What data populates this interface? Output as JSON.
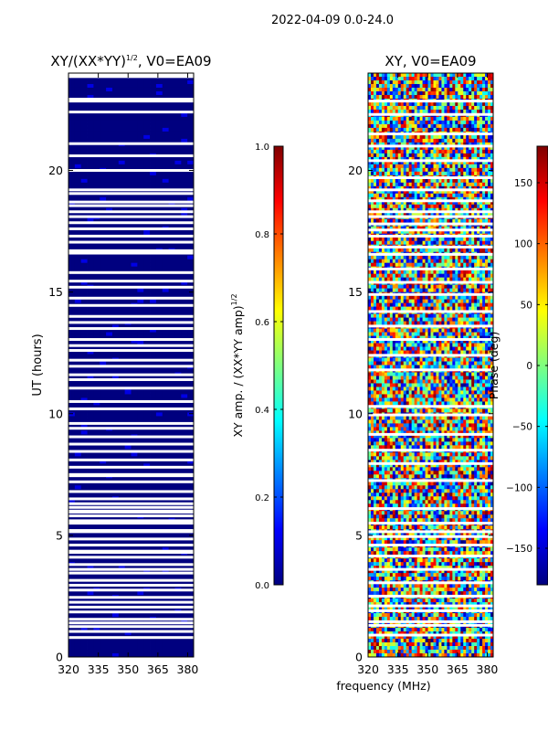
{
  "suptitle": "2022-04-09 0.0-24.0",
  "xlabel_shared": "frequency (MHz)",
  "colormap": [
    "#00007f",
    "#0000ff",
    "#007fff",
    "#00ffff",
    "#7fff7f",
    "#ffff00",
    "#ff7f00",
    "#ff0000",
    "#7f0000"
  ],
  "flag_color": "#ffffff",
  "chart_data": [
    {
      "type": "heatmap",
      "title_base": "XY/(XX*YY)",
      "title_sup": "1/2",
      "title_tail": ", V0=EA09",
      "xlabel": "",
      "ylabel": "UT (hours)",
      "xlim": [
        320,
        383
      ],
      "ylim": [
        0,
        24
      ],
      "xticks": [
        320,
        335,
        350,
        365,
        380
      ],
      "xtick_labels": [
        "320",
        "335",
        "350",
        "365",
        "380"
      ],
      "yticks": [
        0,
        5,
        10,
        15,
        20
      ],
      "ytick_labels": [
        "0",
        "5",
        "10",
        "15",
        "20"
      ],
      "value_pattern": "mostly 0.0 (dark blue) with sparse small amplitudes; many fully flagged (white) time rows",
      "colorbar": {
        "label_base": "XY amp. / (XX*YY amp)",
        "label_sup": "1/2",
        "vmin": 0.0,
        "vmax": 1.0,
        "ticks": [
          0.0,
          0.2,
          0.4,
          0.6,
          0.8,
          1.0
        ],
        "tick_labels": [
          "0.0",
          "0.2",
          "0.4",
          "0.6",
          "0.8",
          "1.0"
        ]
      },
      "flagged_hours": [
        22.85,
        22.93,
        22.4,
        21.1,
        20.6,
        20.0,
        19.2,
        19.05,
        18.7,
        18.55,
        18.3,
        18.1,
        17.85,
        17.6,
        17.3,
        17.05,
        16.7,
        16.6,
        15.8,
        15.45,
        15.2,
        14.75,
        14.45,
        14.0,
        13.75,
        13.5,
        13.05,
        12.8,
        12.6,
        12.2,
        11.95,
        11.6,
        11.4,
        11.05,
        10.5,
        10.2,
        9.6,
        9.4,
        9.05,
        8.75,
        8.45,
        8.1,
        7.8,
        7.5,
        7.45,
        7.2,
        6.8,
        6.5,
        6.3,
        6.15,
        6.0,
        5.95,
        5.8,
        5.6,
        5.5,
        5.2,
        5.15,
        4.85,
        4.6,
        4.35,
        4.3,
        4.1,
        3.8,
        3.6,
        3.45,
        3.15,
        2.95,
        2.75,
        2.45,
        2.25,
        2.05,
        1.85,
        1.55,
        1.4,
        1.25,
        1.05,
        0.8
      ]
    },
    {
      "type": "heatmap",
      "title_base": "XY, V0=EA09",
      "xlabel": "frequency (MHz)",
      "ylabel": "",
      "xlim": [
        320,
        383
      ],
      "ylim": [
        0,
        24
      ],
      "xticks": [
        320,
        335,
        350,
        365,
        380
      ],
      "xtick_labels": [
        "320",
        "335",
        "350",
        "365",
        "380"
      ],
      "yticks": [
        0,
        5,
        10,
        15,
        20
      ],
      "ytick_labels": [
        "0",
        "5",
        "10",
        "15",
        "20"
      ],
      "value_pattern": "noisy phase spanning full range; many flagged (white) time rows",
      "colorbar": {
        "label_base": "Phase (deg)",
        "vmin": -180,
        "vmax": 180,
        "ticks": [
          -150,
          -100,
          -50,
          0,
          50,
          100,
          150
        ],
        "tick_labels": [
          "−150",
          "−100",
          "−50",
          "0",
          "50",
          "100",
          "150"
        ]
      },
      "flagged_hours": [
        22.85,
        22.3,
        21.5,
        21.0,
        20.4,
        19.7,
        19.2,
        18.75,
        18.3,
        18.1,
        17.8,
        17.55,
        17.3,
        16.85,
        16.55,
        15.95,
        15.4,
        14.9,
        14.2,
        13.6,
        13.05,
        12.4,
        11.8,
        10.3,
        9.95,
        9.15,
        8.5,
        7.95,
        7.25,
        6.1,
        5.5,
        5.15,
        4.95,
        4.6,
        4.15,
        3.6,
        3.05,
        2.5,
        2.1,
        1.9,
        1.45,
        1.3,
        0.9
      ]
    }
  ]
}
